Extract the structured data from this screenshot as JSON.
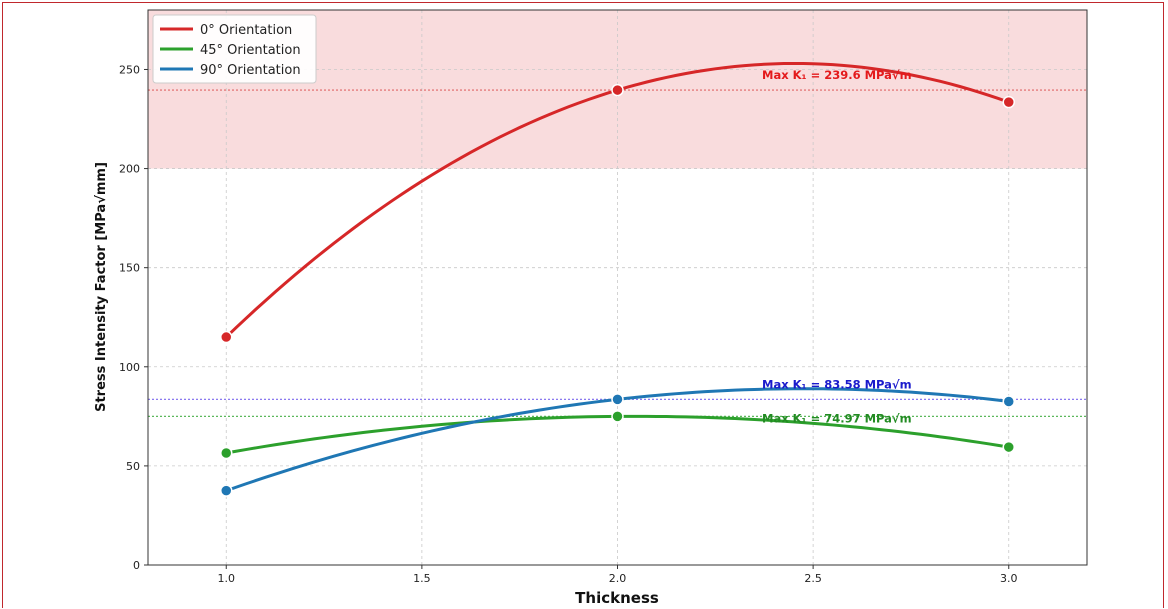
{
  "chart_data": {
    "type": "line",
    "xlabel": "Thickness",
    "ylabel": "Stress Intensity Factor [MPa√mm]",
    "xlim": [
      0.8,
      3.2
    ],
    "ylim": [
      0,
      280
    ],
    "xticks": [
      1.0,
      1.5,
      2.0,
      2.5,
      3.0
    ],
    "xtick_labels": [
      "1.0",
      "1.5",
      "2.0",
      "2.5",
      "3.0"
    ],
    "yticks": [
      0,
      50,
      100,
      150,
      200,
      250
    ],
    "ytick_labels": [
      "0",
      "50",
      "100",
      "150",
      "200",
      "250"
    ],
    "grid": true,
    "legend_position": "top-left",
    "shaded_band": {
      "from": 200,
      "to": 280,
      "color": "#f9dcdd"
    },
    "x": [
      1.0,
      2.0,
      3.0
    ],
    "series": [
      {
        "name": "0° Orientation",
        "color": "#d62728",
        "values": [
          115,
          239.6,
          233.5
        ]
      },
      {
        "name": "45° Orientation",
        "color": "#2ca02c",
        "values": [
          56.5,
          74.97,
          59.5
        ]
      },
      {
        "name": "90° Orientation",
        "color": "#1f77b4",
        "values": [
          37.5,
          83.58,
          82.5
        ]
      }
    ],
    "annotations": [
      {
        "text": "Max K₁ = 239.6 MPa√m",
        "y": 239.6,
        "color": "#e41a1c",
        "line_color": "#e06666"
      },
      {
        "text": "Max K₁ = 83.58 MPa√m",
        "y": 83.58,
        "color": "#1a1acc",
        "line_color": "#7b68ee"
      },
      {
        "text": "Max K₁ = 74.97 MPa√m",
        "y": 74.97,
        "color": "#228b22",
        "line_color": "#5cb85c"
      }
    ]
  }
}
